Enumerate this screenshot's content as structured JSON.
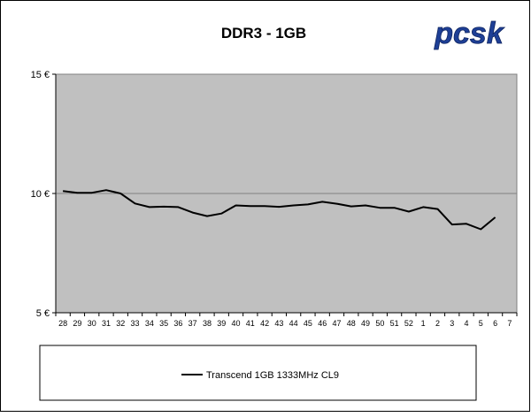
{
  "logo": {
    "text": "pcsk"
  },
  "chart_data": {
    "type": "line",
    "title": "DDR3 - 1GB",
    "xlabel": "",
    "ylabel": "",
    "categories": [
      "28",
      "29",
      "30",
      "31",
      "32",
      "33",
      "34",
      "35",
      "36",
      "37",
      "38",
      "39",
      "40",
      "41",
      "42",
      "43",
      "44",
      "45",
      "46",
      "47",
      "48",
      "49",
      "50",
      "51",
      "52",
      "1",
      "2",
      "3",
      "4",
      "5",
      "6",
      "7"
    ],
    "y_ticks": [
      "5 €",
      "10 €",
      "15 €"
    ],
    "ylim": [
      5,
      15
    ],
    "grid": {
      "y": true,
      "x": false
    },
    "legend_position": "bottom",
    "series": [
      {
        "name": "Transcend 1GB 1333MHz CL9",
        "color": "#000000",
        "values": [
          10.1,
          10.03,
          10.03,
          10.14,
          10.0,
          9.58,
          9.43,
          9.45,
          9.43,
          9.2,
          9.05,
          9.16,
          9.5,
          9.47,
          9.47,
          9.44,
          9.5,
          9.54,
          9.65,
          9.57,
          9.46,
          9.5,
          9.4,
          9.4,
          9.24,
          9.43,
          9.35,
          8.7,
          8.73,
          8.5,
          9.0,
          null
        ]
      }
    ]
  }
}
